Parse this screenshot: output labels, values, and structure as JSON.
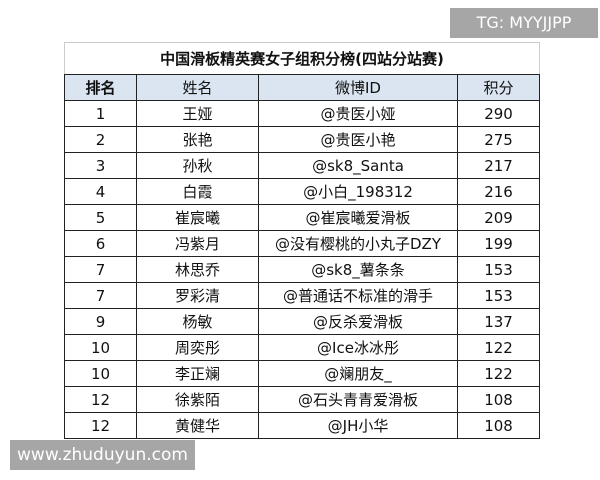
{
  "title": "中国滑板精英赛女子组积分榜(四站分站赛)",
  "headers": [
    "排名",
    "姓名",
    "微博ID",
    "积分"
  ],
  "rows": [
    [
      "1",
      "王娅",
      "@贵医小娅",
      "290"
    ],
    [
      "2",
      "张艳",
      "@贵医小艳",
      "275"
    ],
    [
      "3",
      "孙秋",
      "@sk8_Santa",
      "217"
    ],
    [
      "4",
      "白霞",
      "@小白_198312",
      "216"
    ],
    [
      "5",
      "崔宸曦",
      "@崔宸曦爱滑板",
      "209"
    ],
    [
      "6",
      "冯紫月",
      "@没有樱桃的小丸子DZY",
      "199"
    ],
    [
      "7",
      "林思乔",
      "@sk8_薯条条",
      "153"
    ],
    [
      "7",
      "罗彩清",
      "@普通话不标准的滑手",
      "153"
    ],
    [
      "9",
      "杨敏",
      "@反杀爱滑板",
      "137"
    ],
    [
      "10",
      "周奕彤",
      "@Ice冰冰彤",
      "122"
    ],
    [
      "10",
      "李正斓",
      "@斓朋友_",
      "122"
    ],
    [
      "12",
      "徐紫陌",
      "@石头青青爱滑板",
      "108"
    ],
    [
      "12",
      "黄健华",
      "@JH小华",
      "108"
    ]
  ],
  "watermarks": {
    "top_right": "TG: MYYJJPP",
    "bottom_left": "www.zhuduyun.com"
  },
  "colors": {
    "header_bg": "#dbe5f1",
    "watermark_bg": "#a6a6a6"
  }
}
